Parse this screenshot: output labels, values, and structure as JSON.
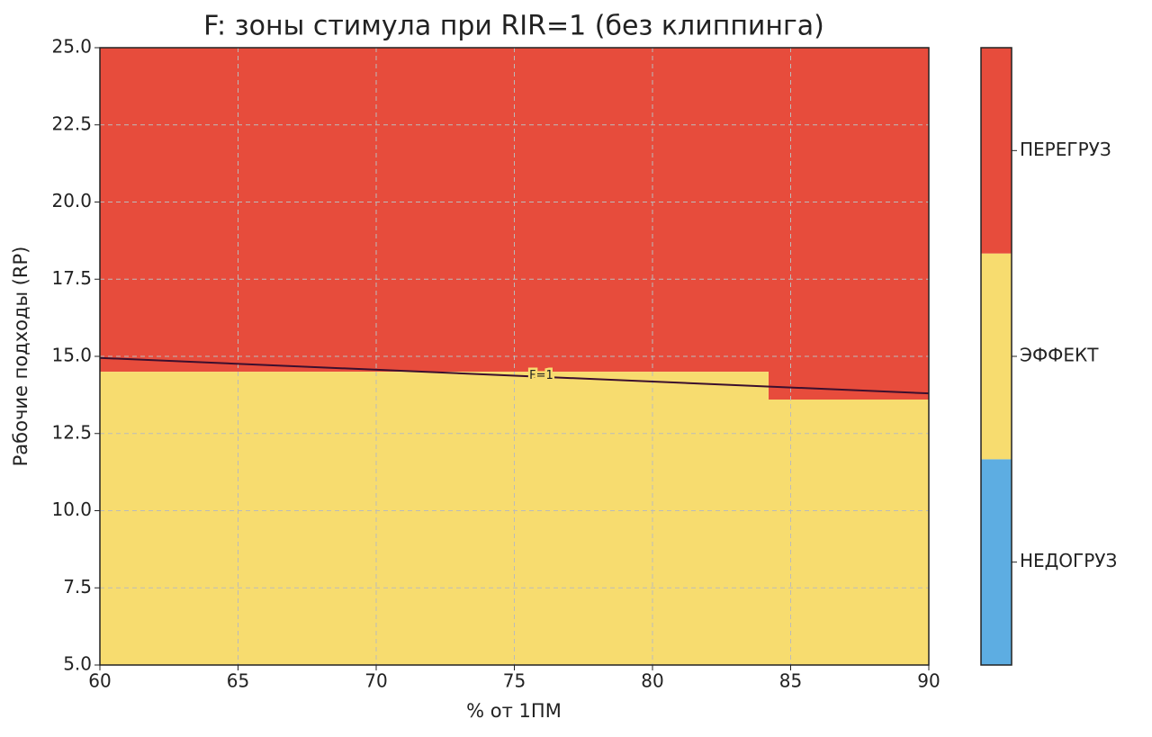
{
  "chart_data": {
    "type": "zones",
    "title": "F: зоны стимула при RIR=1 (без клиппинга)",
    "xlabel": "% от 1ПМ",
    "ylabel": "Рабочие подходы (RP)",
    "xlim": [
      60,
      90
    ],
    "ylim": [
      5,
      25
    ],
    "xticks": [
      60,
      65,
      70,
      75,
      80,
      85,
      90
    ],
    "yticks": [
      {
        "value": 5,
        "label": "5.0"
      },
      {
        "value": 7.5,
        "label": "7.5"
      },
      {
        "value": 10,
        "label": "10.0"
      },
      {
        "value": 12.5,
        "label": "12.5"
      },
      {
        "value": 15,
        "label": "15.0"
      },
      {
        "value": 17.5,
        "label": "17.5"
      },
      {
        "value": 20,
        "label": "20.0"
      },
      {
        "value": 22.5,
        "label": "22.5"
      },
      {
        "value": 25,
        "label": "25.0"
      }
    ],
    "grid": true,
    "zones": [
      {
        "name": "НЕДОГРУЗ",
        "color": "#5dade2"
      },
      {
        "name": "ЭФФЕКТ",
        "color": "#f7dc6f"
      },
      {
        "name": "ПЕРЕГРУЗ",
        "color": "#e74c3c"
      }
    ],
    "boundary": {
      "x": [
        60,
        84.2,
        84.2,
        90
      ],
      "values": [
        14.5,
        14.5,
        13.6,
        13.6
      ]
    },
    "series": [
      {
        "name": "F=1",
        "color": "#3b0f2e",
        "x": [
          60,
          90
        ],
        "values": [
          14.95,
          13.8
        ]
      }
    ]
  }
}
